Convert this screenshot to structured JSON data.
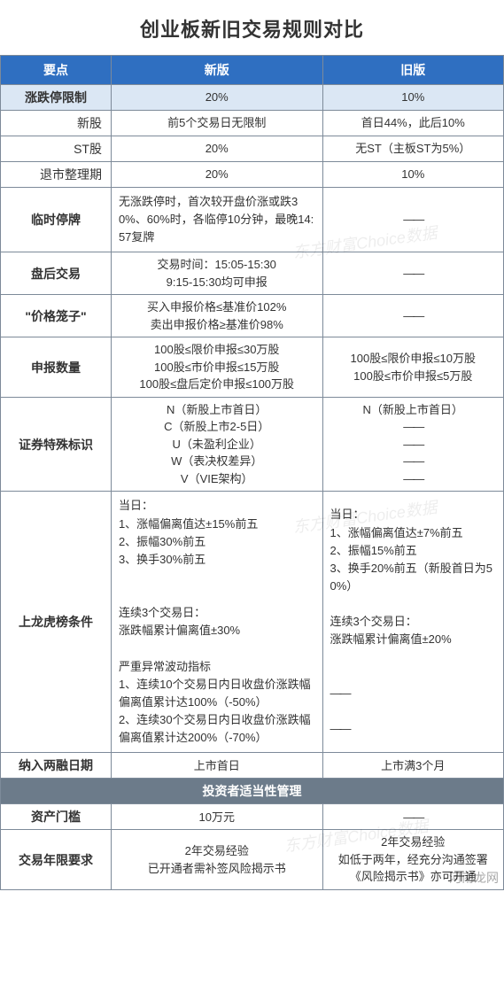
{
  "title": "创业板新旧交易规则对比",
  "title_fontsize": 22,
  "columns": [
    "要点",
    "新版",
    "旧版"
  ],
  "col_widths": [
    "22%",
    "42%",
    "36%"
  ],
  "header_bg": "#2f6fc1",
  "header_text_color": "#ffffff",
  "shade_bg": "#dbe7f4",
  "border_color": "#7d8a99",
  "text_color": "#333333",
  "cell_fontsize": 13,
  "key_fontsize": 14,
  "dash": "——",
  "watermark_text": "东方财富Choice数据",
  "footer_text": "河南龙网",
  "section2_title": "投资者适当性管理",
  "section2_bg": "#6c7b8a",
  "rows_group1": [
    {
      "key": "涨跌停限制",
      "key_bold": true,
      "new": "20%",
      "old": "10%",
      "shade": true,
      "center": true
    },
    {
      "key": "新股",
      "sub": true,
      "new": "前5个交易日无限制",
      "old": "首日44%，此后10%",
      "center": true
    },
    {
      "key": "ST股",
      "sub": true,
      "new": "20%",
      "old": "无ST（主板ST为5%）",
      "center": true
    },
    {
      "key": "退市整理期",
      "sub": true,
      "new": "20%",
      "old": "10%",
      "center": true
    }
  ],
  "rows_group2": [
    {
      "key": "临时停牌",
      "new": "无涨跌停时，首次较开盘价涨或跌30%、60%时，各临停10分钟，最晚14:57复牌",
      "old": "——",
      "new_align": "left",
      "old_align": "center"
    },
    {
      "key": "盘后交易",
      "new": "交易时间：15:05-15:30\n9:15-15:30均可申报",
      "old": "——",
      "new_align": "center",
      "old_align": "center"
    },
    {
      "key": "\"价格笼子\"",
      "new": "买入申报价格≤基准价102%\n卖出申报价格≥基准价98%",
      "old": "——",
      "new_align": "center",
      "old_align": "center"
    },
    {
      "key": "申报数量",
      "new": "100股≤限价申报≤30万股\n100股≤市价申报≤15万股\n100股≤盘后定价申报≤100万股",
      "old": "100股≤限价申报≤10万股\n100股≤市价申报≤5万股",
      "new_align": "center",
      "old_align": "center"
    },
    {
      "key": "证券特殊标识",
      "new": "N（新股上市首日）\nC（新股上市2-5日）\nU（未盈利企业）\nW（表决权差异）\nV（VIE架构）",
      "old": "N（新股上市首日）\n——\n——\n——\n——",
      "new_align": "center",
      "old_align": "center"
    },
    {
      "key": "上龙虎榜条件",
      "new": "当日：\n1、涨幅偏离值达±15%前五\n2、振幅30%前五\n3、换手30%前五\n\n\n连续3个交易日：\n涨跌幅累计偏离值±30%\n\n严重异常波动指标\n1、连续10个交易日内日收盘价涨跌幅偏离值累计达100%（-50%）\n2、连续30个交易日内日收盘价涨跌幅偏离值累计达200%（-70%）",
      "old": "当日：\n1、涨幅偏离值达±7%前五\n2、振幅15%前五\n3、换手20%前五（新股首日为50%）\n\n连续3个交易日：\n涨跌幅累计偏离值±20%\n\n\n——\n\n——",
      "new_align": "left",
      "old_align": "left"
    },
    {
      "key": "纳入两融日期",
      "new": "上市首日",
      "old": "上市满3个月",
      "new_align": "center",
      "old_align": "center"
    }
  ],
  "rows_group3": [
    {
      "key": "资产门槛",
      "new": "10万元",
      "old": "——",
      "new_align": "center",
      "old_align": "center"
    },
    {
      "key": "交易年限要求",
      "new": "2年交易经验\n已开通者需补签风险揭示书",
      "old": "2年交易经验\n如低于两年，经充分沟通签署《风险揭示书》亦可开通",
      "new_align": "center",
      "old_align": "center"
    }
  ]
}
